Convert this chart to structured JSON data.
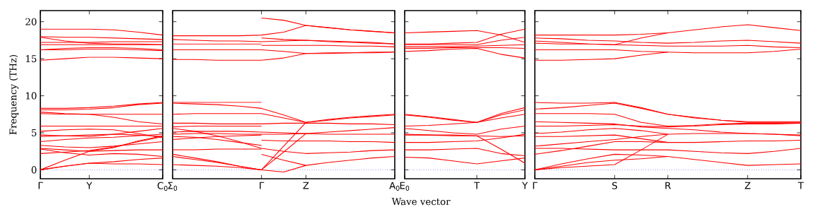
{
  "chart_data": [
    {
      "type": "line",
      "ylabel": "Frequency (THz)",
      "ylim": [
        -1.2,
        21.5
      ],
      "yticks": [
        0,
        5,
        10,
        15,
        20
      ],
      "categories": [
        "Γ",
        null,
        "Y",
        null,
        null,
        "C$_{0}$"
      ],
      "ref_lines": [
        {
          "axis": "y",
          "value": 0,
          "color": "#0000ff",
          "line_style": "dotted"
        }
      ],
      "series": [
        {
          "color": "#ff0000",
          "values": [
            19.0,
            19.0,
            19.0,
            18.9,
            18.6,
            18.2
          ]
        },
        {
          "color": "#ff0000",
          "values": [
            18.0,
            17.9,
            17.9,
            17.8,
            17.7,
            17.6
          ]
        },
        {
          "color": "#ff0000",
          "values": [
            17.9,
            17.4,
            17.1,
            17.0,
            17.0,
            16.9
          ]
        },
        {
          "color": "#ff0000",
          "values": [
            17.2,
            17.2,
            17.2,
            17.3,
            17.3,
            17.3
          ]
        },
        {
          "color": "#ff0000",
          "values": [
            16.9,
            16.9,
            16.9,
            16.9,
            16.9,
            16.9
          ]
        },
        {
          "color": "#ff0000",
          "values": [
            16.2,
            16.4,
            16.5,
            16.5,
            16.4,
            16.2
          ]
        },
        {
          "color": "#ff0000",
          "values": [
            16.2,
            16.2,
            16.3,
            16.3,
            16.2,
            16.1
          ]
        },
        {
          "color": "#ff0000",
          "values": [
            14.8,
            15.0,
            15.2,
            15.2,
            15.1,
            15.0
          ]
        },
        {
          "color": "#ff0000",
          "values": [
            8.3,
            8.3,
            8.4,
            8.6,
            8.9,
            9.1
          ]
        },
        {
          "color": "#ff0000",
          "values": [
            8.1,
            8.1,
            8.2,
            8.4,
            8.8,
            9.0
          ]
        },
        {
          "color": "#ff0000",
          "values": [
            7.8,
            7.6,
            7.5,
            7.1,
            6.5,
            6.2
          ]
        },
        {
          "color": "#ff0000",
          "values": [
            7.6,
            7.5,
            7.5,
            7.5,
            7.5,
            7.5
          ]
        },
        {
          "color": "#ff0000",
          "values": [
            5.9,
            5.9,
            5.9,
            5.9,
            5.9,
            5.9
          ]
        },
        {
          "color": "#ff0000",
          "values": [
            5.2,
            5.4,
            5.5,
            5.4,
            4.9,
            4.3
          ]
        },
        {
          "color": "#ff0000",
          "values": [
            4.7,
            4.6,
            4.5,
            4.8,
            5.2,
            5.6
          ]
        },
        {
          "color": "#ff0000",
          "values": [
            4.5,
            4.6,
            4.7,
            4.8,
            4.7,
            4.5
          ]
        },
        {
          "color": "#ff0000",
          "values": [
            3.8,
            4.1,
            4.3,
            4.4,
            4.6,
            4.8
          ]
        },
        {
          "color": "#ff0000",
          "values": [
            3.3,
            3.1,
            3.0,
            3.2,
            3.5,
            3.8
          ]
        },
        {
          "color": "#ff0000",
          "values": [
            2.9,
            2.7,
            2.5,
            2.6,
            2.7,
            2.7
          ]
        },
        {
          "color": "#ff0000",
          "values": [
            2.8,
            2.3,
            2.0,
            2.2,
            2.1,
            1.8
          ]
        },
        {
          "color": "#ff0000",
          "values": [
            2.2,
            2.4,
            2.6,
            3.1,
            3.8,
            4.5
          ]
        },
        {
          "color": "#ff0000",
          "values": [
            0,
            1.3,
            2.5,
            3.0,
            3.9,
            4.6
          ]
        },
        {
          "color": "#ff0000",
          "values": [
            0,
            0.5,
            0.9,
            1.1,
            1.4,
            1.6
          ]
        },
        {
          "color": "#ff0000",
          "values": [
            0,
            0.5,
            0.9,
            0.8,
            0.8,
            0.7
          ]
        }
      ]
    },
    {
      "type": "line",
      "xlabel": "Wave vector",
      "tick_labels": "x",
      "ylim": [
        -1.2,
        21.5
      ],
      "yticks": [
        0,
        5,
        10,
        15,
        20
      ],
      "categories": [
        "Σ$_{0}$",
        null,
        null,
        null,
        "Γ",
        null,
        "Z",
        null,
        null,
        null,
        "A$_{0}$"
      ],
      "ref_lines": [
        {
          "axis": "y",
          "value": 0,
          "color": "#0000ff",
          "line_style": "dotted"
        }
      ],
      "series": [
        {
          "color": "#ff0000",
          "values": [
            18.1,
            18.1,
            18.1,
            18.1,
            18.2,
            18.6,
            19.5,
            19.2,
            18.9,
            18.7,
            18.5
          ]
        },
        {
          "color": "#ff0000",
          "values": [
            null,
            null,
            null,
            null,
            20.5,
            20.2,
            19.5,
            19.2,
            18.9,
            18.7,
            18.5
          ]
        },
        {
          "color": "#ff0000",
          "values": [
            17.6,
            17.5,
            17.4,
            17.4,
            17.3,
            17.4,
            17.5,
            17.4,
            17.3,
            17.2,
            17.0
          ]
        },
        {
          "color": "#ff0000",
          "values": [
            null,
            null,
            null,
            null,
            17.8,
            17.6,
            17.5,
            17.3,
            17.2,
            17.1,
            17.0
          ]
        },
        {
          "color": "#ff0000",
          "values": [
            17.0,
            17.0,
            17.0,
            17.0,
            17.0,
            null,
            null,
            null,
            null,
            null,
            null
          ]
        },
        {
          "color": "#ff0000",
          "values": [
            null,
            null,
            null,
            null,
            16.8,
            16.8,
            16.8,
            16.8,
            16.7,
            16.7,
            16.6
          ]
        },
        {
          "color": "#ff0000",
          "values": [
            16.2,
            16.2,
            16.2,
            16.2,
            16.2,
            16.0,
            15.7,
            15.7,
            15.8,
            15.8,
            15.9
          ]
        },
        {
          "color": "#ff0000",
          "values": [
            14.9,
            14.9,
            14.8,
            14.8,
            14.8,
            15.1,
            15.7,
            15.8,
            15.8,
            15.9,
            15.9
          ]
        },
        {
          "color": "#ff0000",
          "values": [
            9.1,
            9.1,
            9.1,
            9.1,
            9.1,
            null,
            null,
            null,
            null,
            null,
            null
          ]
        },
        {
          "color": "#ff0000",
          "values": [
            9.0,
            8.9,
            8.8,
            8.6,
            8.3,
            7.4,
            6.4,
            6.8,
            7.1,
            7.3,
            7.5
          ]
        },
        {
          "color": "#ff0000",
          "values": [
            7.5,
            7.6,
            7.6,
            7.6,
            7.6,
            7.0,
            6.4,
            6.7,
            7.0,
            7.2,
            7.4
          ]
        },
        {
          "color": "#ff0000",
          "values": [
            6.3,
            6.3,
            6.2,
            6.2,
            6.2,
            6.3,
            6.3,
            6.3,
            6.2,
            6.2,
            6.1
          ]
        },
        {
          "color": "#ff0000",
          "values": [
            5.8,
            5.9,
            5.9,
            5.9,
            5.9,
            null,
            null,
            null,
            null,
            null,
            null
          ]
        },
        {
          "color": "#ff0000",
          "values": [
            5.6,
            5.2,
            4.6,
            3.8,
            2.9,
            2.5,
            2.2,
            2.3,
            2.4,
            2.6,
            2.7
          ]
        },
        {
          "color": "#ff0000",
          "values": [
            5.1,
            5.2,
            5.2,
            5.2,
            5.1,
            5.0,
            4.9,
            5.1,
            5.3,
            5.5,
            5.7
          ]
        },
        {
          "color": "#ff0000",
          "values": [
            4.8,
            4.9,
            4.9,
            4.8,
            4.8,
            4.8,
            4.9,
            4.8,
            4.8,
            4.8,
            4.8
          ]
        },
        {
          "color": "#ff0000",
          "values": [
            4.5,
            4.4,
            4.1,
            3.7,
            3.3,
            null,
            null,
            null,
            null,
            null,
            null
          ]
        },
        {
          "color": "#ff0000",
          "values": [
            4.1,
            4.3,
            4.5,
            4.6,
            4.7,
            null,
            null,
            null,
            null,
            null,
            null
          ]
        },
        {
          "color": "#ff0000",
          "values": [
            null,
            null,
            null,
            null,
            4.0,
            3.9,
            3.9,
            3.9,
            3.8,
            3.8,
            3.7
          ]
        },
        {
          "color": "#ff0000",
          "values": [
            2.7,
            2.7,
            2.8,
            2.8,
            2.8,
            null,
            null,
            null,
            null,
            null,
            null
          ]
        },
        {
          "color": "#ff0000",
          "values": [
            2.1,
            1.6,
            1.1,
            0.5,
            0,
            3.2,
            6.4,
            null,
            null,
            null,
            null
          ]
        },
        {
          "color": "#ff0000",
          "values": [
            1.8,
            1.4,
            1.0,
            0.5,
            0,
            2.4,
            4.9,
            null,
            null,
            null,
            null
          ]
        },
        {
          "color": "#ff0000",
          "values": [
            0.7,
            0.6,
            0.5,
            0.3,
            0,
            -0.3,
            0.6,
            1.0,
            1.3,
            1.6,
            1.8
          ]
        },
        {
          "color": "#ff0000",
          "values": [
            null,
            null,
            null,
            null,
            2.1,
            1.3,
            0.6,
            null,
            null,
            null,
            null
          ]
        }
      ]
    },
    {
      "type": "line",
      "tick_labels": "x",
      "ylim": [
        -1.2,
        21.5
      ],
      "yticks": [
        0,
        5,
        10,
        15,
        20
      ],
      "categories": [
        "E$_{0}$",
        null,
        null,
        "T",
        null,
        "Y"
      ],
      "ref_lines": [
        {
          "axis": "y",
          "value": 0,
          "color": "#0000ff",
          "line_style": "dotted"
        }
      ],
      "series": [
        {
          "color": "#ff0000",
          "values": [
            18.5,
            18.6,
            18.7,
            18.8,
            18.2,
            17.2
          ]
        },
        {
          "color": "#ff0000",
          "values": [
            17.0,
            17.0,
            17.1,
            17.2,
            18.3,
            19.0
          ]
        },
        {
          "color": "#ff0000",
          "values": [
            16.9,
            16.9,
            16.9,
            16.9,
            17.5,
            17.9
          ]
        },
        {
          "color": "#ff0000",
          "values": [
            16.6,
            16.6,
            16.6,
            16.7,
            16.8,
            16.9
          ]
        },
        {
          "color": "#ff0000",
          "values": [
            16.4,
            16.4,
            16.5,
            16.5,
            16.5,
            16.4
          ]
        },
        {
          "color": "#ff0000",
          "values": [
            16.0,
            16.1,
            16.3,
            16.4,
            15.6,
            15.1
          ]
        },
        {
          "color": "#ff0000",
          "values": [
            7.5,
            7.2,
            6.8,
            6.4,
            7.6,
            8.4
          ]
        },
        {
          "color": "#ff0000",
          "values": [
            7.4,
            7.1,
            6.7,
            6.4,
            7.4,
            8.1
          ]
        },
        {
          "color": "#ff0000",
          "values": [
            5.9,
            6.0,
            6.2,
            6.4,
            7.0,
            7.5
          ]
        },
        {
          "color": "#ff0000",
          "values": [
            5.6,
            5.3,
            5.0,
            4.8,
            5.5,
            5.9
          ]
        },
        {
          "color": "#ff0000",
          "values": [
            4.8,
            4.7,
            4.7,
            4.6,
            2.8,
            0.9
          ]
        },
        {
          "color": "#ff0000",
          "values": [
            4.7,
            4.7,
            4.6,
            4.6,
            4.5,
            4.6
          ]
        },
        {
          "color": "#ff0000",
          "values": [
            3.7,
            3.7,
            3.8,
            3.9,
            4.3,
            4.8
          ]
        },
        {
          "color": "#ff0000",
          "values": [
            2.7,
            2.7,
            2.8,
            2.9,
            2.2,
            1.9
          ]
        },
        {
          "color": "#ff0000",
          "values": [
            1.7,
            1.6,
            1.2,
            0.8,
            1.2,
            1.6
          ]
        }
      ]
    },
    {
      "type": "line",
      "tick_labels": "x",
      "ylim": [
        -1.2,
        21.5
      ],
      "yticks": [
        0,
        5,
        10,
        15,
        20
      ],
      "categories": [
        "Γ",
        null,
        null,
        "S",
        null,
        "R",
        null,
        null,
        "Z",
        null,
        "T"
      ],
      "ref_lines": [
        {
          "axis": "y",
          "value": 0,
          "color": "#0000ff",
          "line_style": "dotted"
        }
      ],
      "series": [
        {
          "color": "#ff0000",
          "values": [
            18.2,
            18.2,
            18.2,
            18.2,
            18.3,
            18.5,
            18.9,
            19.3,
            19.6,
            19.2,
            18.8
          ]
        },
        {
          "color": "#ff0000",
          "values": [
            17.8,
            17.7,
            17.5,
            17.4,
            17.2,
            17.1,
            17.2,
            17.4,
            17.5,
            17.3,
            17.1
          ]
        },
        {
          "color": "#ff0000",
          "values": [
            17.4,
            17.2,
            17.0,
            16.9,
            17.8,
            18.5,
            null,
            null,
            null,
            null,
            null
          ]
        },
        {
          "color": "#ff0000",
          "values": [
            17.1,
            17.0,
            17.0,
            16.9,
            16.8,
            16.7,
            16.7,
            16.7,
            16.8,
            16.6,
            16.5
          ]
        },
        {
          "color": "#ff0000",
          "values": [
            16.2,
            16.2,
            16.2,
            16.2,
            16.0,
            15.9,
            15.8,
            15.8,
            15.8,
            16.0,
            16.3
          ]
        },
        {
          "color": "#ff0000",
          "values": [
            14.8,
            14.8,
            14.9,
            15.0,
            15.5,
            15.9,
            null,
            null,
            null,
            null,
            null
          ]
        },
        {
          "color": "#ff0000",
          "values": [
            9.1,
            9.0,
            9.0,
            9.1,
            8.4,
            7.5,
            7.1,
            6.7,
            6.4,
            6.4,
            6.4
          ]
        },
        {
          "color": "#ff0000",
          "values": [
            8.2,
            8.4,
            8.7,
            9.0,
            8.3,
            7.5,
            7.0,
            6.7,
            6.5,
            6.5,
            6.5
          ]
        },
        {
          "color": "#ff0000",
          "values": [
            7.6,
            7.6,
            7.6,
            7.5,
            6.4,
            5.9,
            6.0,
            6.2,
            6.3,
            6.3,
            6.3
          ]
        },
        {
          "color": "#ff0000",
          "values": [
            6.5,
            6.4,
            6.3,
            6.2,
            5.8,
            5.6,
            5.4,
            5.1,
            4.9,
            4.8,
            4.7
          ]
        },
        {
          "color": "#ff0000",
          "values": [
            5.9,
            5.9,
            6.0,
            6.1,
            5.9,
            5.8,
            5.9,
            6.1,
            6.2,
            6.2,
            6.3
          ]
        },
        {
          "color": "#ff0000",
          "values": [
            4.9,
            5.1,
            5.4,
            5.6,
            5.3,
            4.8,
            4.9,
            4.9,
            4.9,
            4.8,
            4.6
          ]
        },
        {
          "color": "#ff0000",
          "values": [
            4.5,
            4.5,
            4.6,
            4.7,
            4.2,
            3.7,
            3.7,
            3.8,
            3.9,
            3.9,
            4.0
          ]
        },
        {
          "color": "#ff0000",
          "values": [
            3.2,
            3.5,
            3.8,
            4.1,
            4.5,
            4.8,
            null,
            null,
            null,
            null,
            null
          ]
        },
        {
          "color": "#ff0000",
          "values": [
            2.9,
            2.9,
            2.8,
            2.7,
            2.7,
            2.7,
            2.5,
            2.3,
            2.2,
            2.5,
            2.9
          ]
        },
        {
          "color": "#ff0000",
          "values": [
            2.1,
            2.6,
            3.2,
            3.8,
            3.8,
            3.7,
            null,
            null,
            null,
            null,
            null
          ]
        },
        {
          "color": "#ff0000",
          "values": [
            0,
            0.8,
            1.5,
            2.1,
            2.0,
            1.8,
            1.4,
            1.0,
            0.6,
            0.7,
            0.8
          ]
        },
        {
          "color": "#ff0000",
          "values": [
            0,
            0.5,
            1.0,
            1.3,
            1.5,
            1.8,
            null,
            null,
            null,
            null,
            null
          ]
        },
        {
          "color": "#ff0000",
          "values": [
            0,
            0.3,
            0.5,
            0.7,
            2.7,
            4.8,
            null,
            null,
            null,
            null,
            null
          ]
        }
      ]
    }
  ]
}
